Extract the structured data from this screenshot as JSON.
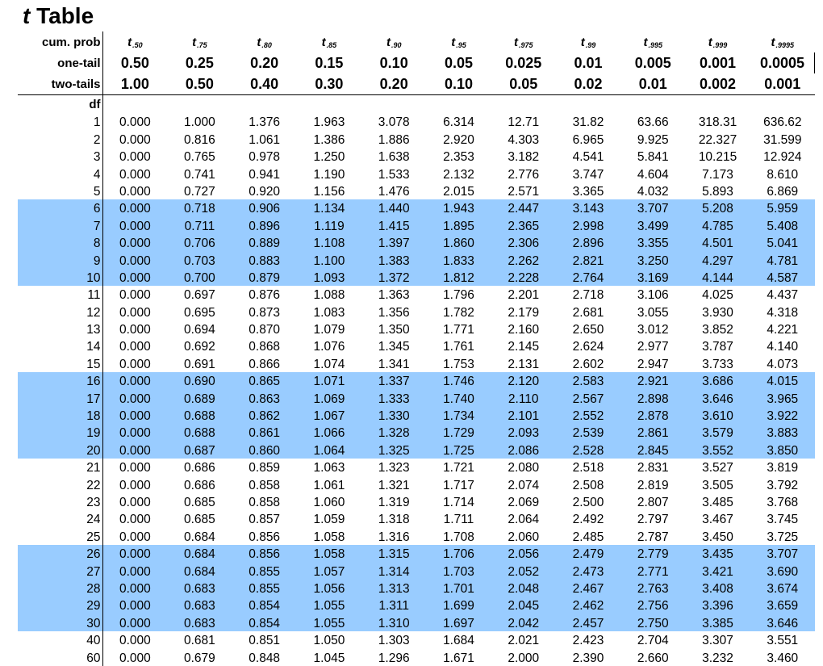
{
  "title": {
    "italic": "t",
    "rest": " Table"
  },
  "header": {
    "cum_prob_label": "cum. prob",
    "one_tail_label": "one-tail",
    "two_tails_label": "two-tails",
    "df_label": "df",
    "cum_prob": [
      {
        "t": "t",
        "sub": ".50"
      },
      {
        "t": "t",
        "sub": ".75"
      },
      {
        "t": "t",
        "sub": ".80"
      },
      {
        "t": "t",
        "sub": ".85"
      },
      {
        "t": "t",
        "sub": ".90"
      },
      {
        "t": "t",
        "sub": ".95"
      },
      {
        "t": "t",
        "sub": ".975"
      },
      {
        "t": "t",
        "sub": ".99"
      },
      {
        "t": "t",
        "sub": ".995"
      },
      {
        "t": "t",
        "sub": ".999"
      },
      {
        "t": "t",
        "sub": ".9995"
      }
    ],
    "one_tail": [
      "0.50",
      "0.25",
      "0.20",
      "0.15",
      "0.10",
      "0.05",
      "0.025",
      "0.01",
      "0.005",
      "0.001",
      "0.0005"
    ],
    "two_tails": [
      "1.00",
      "0.50",
      "0.40",
      "0.30",
      "0.20",
      "0.10",
      "0.05",
      "0.02",
      "0.01",
      "0.002",
      "0.001"
    ]
  },
  "shade_color": "#99ccff",
  "rows": [
    {
      "df": "1",
      "shaded": false,
      "values": [
        "0.000",
        "1.000",
        "1.376",
        "1.963",
        "3.078",
        "6.314",
        "12.71",
        "31.82",
        "63.66",
        "318.31",
        "636.62"
      ]
    },
    {
      "df": "2",
      "shaded": false,
      "values": [
        "0.000",
        "0.816",
        "1.061",
        "1.386",
        "1.886",
        "2.920",
        "4.303",
        "6.965",
        "9.925",
        "22.327",
        "31.599"
      ]
    },
    {
      "df": "3",
      "shaded": false,
      "values": [
        "0.000",
        "0.765",
        "0.978",
        "1.250",
        "1.638",
        "2.353",
        "3.182",
        "4.541",
        "5.841",
        "10.215",
        "12.924"
      ]
    },
    {
      "df": "4",
      "shaded": false,
      "values": [
        "0.000",
        "0.741",
        "0.941",
        "1.190",
        "1.533",
        "2.132",
        "2.776",
        "3.747",
        "4.604",
        "7.173",
        "8.610"
      ]
    },
    {
      "df": "5",
      "shaded": false,
      "values": [
        "0.000",
        "0.727",
        "0.920",
        "1.156",
        "1.476",
        "2.015",
        "2.571",
        "3.365",
        "4.032",
        "5.893",
        "6.869"
      ]
    },
    {
      "df": "6",
      "shaded": true,
      "values": [
        "0.000",
        "0.718",
        "0.906",
        "1.134",
        "1.440",
        "1.943",
        "2.447",
        "3.143",
        "3.707",
        "5.208",
        "5.959"
      ]
    },
    {
      "df": "7",
      "shaded": true,
      "values": [
        "0.000",
        "0.711",
        "0.896",
        "1.119",
        "1.415",
        "1.895",
        "2.365",
        "2.998",
        "3.499",
        "4.785",
        "5.408"
      ]
    },
    {
      "df": "8",
      "shaded": true,
      "values": [
        "0.000",
        "0.706",
        "0.889",
        "1.108",
        "1.397",
        "1.860",
        "2.306",
        "2.896",
        "3.355",
        "4.501",
        "5.041"
      ]
    },
    {
      "df": "9",
      "shaded": true,
      "values": [
        "0.000",
        "0.703",
        "0.883",
        "1.100",
        "1.383",
        "1.833",
        "2.262",
        "2.821",
        "3.250",
        "4.297",
        "4.781"
      ]
    },
    {
      "df": "10",
      "shaded": true,
      "values": [
        "0.000",
        "0.700",
        "0.879",
        "1.093",
        "1.372",
        "1.812",
        "2.228",
        "2.764",
        "3.169",
        "4.144",
        "4.587"
      ]
    },
    {
      "df": "11",
      "shaded": false,
      "values": [
        "0.000",
        "0.697",
        "0.876",
        "1.088",
        "1.363",
        "1.796",
        "2.201",
        "2.718",
        "3.106",
        "4.025",
        "4.437"
      ]
    },
    {
      "df": "12",
      "shaded": false,
      "values": [
        "0.000",
        "0.695",
        "0.873",
        "1.083",
        "1.356",
        "1.782",
        "2.179",
        "2.681",
        "3.055",
        "3.930",
        "4.318"
      ]
    },
    {
      "df": "13",
      "shaded": false,
      "values": [
        "0.000",
        "0.694",
        "0.870",
        "1.079",
        "1.350",
        "1.771",
        "2.160",
        "2.650",
        "3.012",
        "3.852",
        "4.221"
      ]
    },
    {
      "df": "14",
      "shaded": false,
      "values": [
        "0.000",
        "0.692",
        "0.868",
        "1.076",
        "1.345",
        "1.761",
        "2.145",
        "2.624",
        "2.977",
        "3.787",
        "4.140"
      ]
    },
    {
      "df": "15",
      "shaded": false,
      "values": [
        "0.000",
        "0.691",
        "0.866",
        "1.074",
        "1.341",
        "1.753",
        "2.131",
        "2.602",
        "2.947",
        "3.733",
        "4.073"
      ]
    },
    {
      "df": "16",
      "shaded": true,
      "values": [
        "0.000",
        "0.690",
        "0.865",
        "1.071",
        "1.337",
        "1.746",
        "2.120",
        "2.583",
        "2.921",
        "3.686",
        "4.015"
      ]
    },
    {
      "df": "17",
      "shaded": true,
      "values": [
        "0.000",
        "0.689",
        "0.863",
        "1.069",
        "1.333",
        "1.740",
        "2.110",
        "2.567",
        "2.898",
        "3.646",
        "3.965"
      ]
    },
    {
      "df": "18",
      "shaded": true,
      "values": [
        "0.000",
        "0.688",
        "0.862",
        "1.067",
        "1.330",
        "1.734",
        "2.101",
        "2.552",
        "2.878",
        "3.610",
        "3.922"
      ]
    },
    {
      "df": "19",
      "shaded": true,
      "values": [
        "0.000",
        "0.688",
        "0.861",
        "1.066",
        "1.328",
        "1.729",
        "2.093",
        "2.539",
        "2.861",
        "3.579",
        "3.883"
      ]
    },
    {
      "df": "20",
      "shaded": true,
      "values": [
        "0.000",
        "0.687",
        "0.860",
        "1.064",
        "1.325",
        "1.725",
        "2.086",
        "2.528",
        "2.845",
        "3.552",
        "3.850"
      ]
    },
    {
      "df": "21",
      "shaded": false,
      "values": [
        "0.000",
        "0.686",
        "0.859",
        "1.063",
        "1.323",
        "1.721",
        "2.080",
        "2.518",
        "2.831",
        "3.527",
        "3.819"
      ]
    },
    {
      "df": "22",
      "shaded": false,
      "values": [
        "0.000",
        "0.686",
        "0.858",
        "1.061",
        "1.321",
        "1.717",
        "2.074",
        "2.508",
        "2.819",
        "3.505",
        "3.792"
      ]
    },
    {
      "df": "23",
      "shaded": false,
      "values": [
        "0.000",
        "0.685",
        "0.858",
        "1.060",
        "1.319",
        "1.714",
        "2.069",
        "2.500",
        "2.807",
        "3.485",
        "3.768"
      ]
    },
    {
      "df": "24",
      "shaded": false,
      "values": [
        "0.000",
        "0.685",
        "0.857",
        "1.059",
        "1.318",
        "1.711",
        "2.064",
        "2.492",
        "2.797",
        "3.467",
        "3.745"
      ]
    },
    {
      "df": "25",
      "shaded": false,
      "values": [
        "0.000",
        "0.684",
        "0.856",
        "1.058",
        "1.316",
        "1.708",
        "2.060",
        "2.485",
        "2.787",
        "3.450",
        "3.725"
      ]
    },
    {
      "df": "26",
      "shaded": true,
      "values": [
        "0.000",
        "0.684",
        "0.856",
        "1.058",
        "1.315",
        "1.706",
        "2.056",
        "2.479",
        "2.779",
        "3.435",
        "3.707"
      ]
    },
    {
      "df": "27",
      "shaded": true,
      "values": [
        "0.000",
        "0.684",
        "0.855",
        "1.057",
        "1.314",
        "1.703",
        "2.052",
        "2.473",
        "2.771",
        "3.421",
        "3.690"
      ]
    },
    {
      "df": "28",
      "shaded": true,
      "values": [
        "0.000",
        "0.683",
        "0.855",
        "1.056",
        "1.313",
        "1.701",
        "2.048",
        "2.467",
        "2.763",
        "3.408",
        "3.674"
      ]
    },
    {
      "df": "29",
      "shaded": true,
      "values": [
        "0.000",
        "0.683",
        "0.854",
        "1.055",
        "1.311",
        "1.699",
        "2.045",
        "2.462",
        "2.756",
        "3.396",
        "3.659"
      ]
    },
    {
      "df": "30",
      "shaded": true,
      "values": [
        "0.000",
        "0.683",
        "0.854",
        "1.055",
        "1.310",
        "1.697",
        "2.042",
        "2.457",
        "2.750",
        "3.385",
        "3.646"
      ]
    },
    {
      "df": "40",
      "shaded": false,
      "values": [
        "0.000",
        "0.681",
        "0.851",
        "1.050",
        "1.303",
        "1.684",
        "2.021",
        "2.423",
        "2.704",
        "3.307",
        "3.551"
      ]
    },
    {
      "df": "60",
      "shaded": false,
      "values": [
        "0.000",
        "0.679",
        "0.848",
        "1.045",
        "1.296",
        "1.671",
        "2.000",
        "2.390",
        "2.660",
        "3.232",
        "3.460"
      ]
    }
  ]
}
